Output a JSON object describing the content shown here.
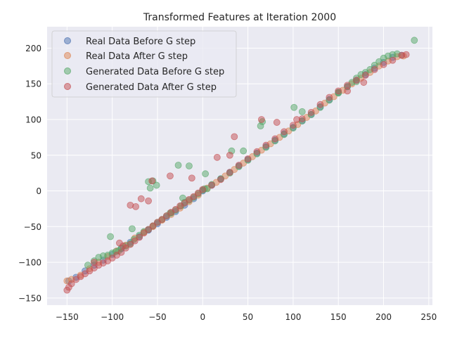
{
  "chart_data": {
    "type": "scatter",
    "title": "Transformed Features at Iteration 2000",
    "xlabel": "",
    "ylabel": "",
    "xlim": [
      -172,
      254
    ],
    "ylim": [
      -160,
      230
    ],
    "xticks": [
      -150,
      -100,
      -50,
      0,
      50,
      100,
      150,
      200,
      250
    ],
    "yticks": [
      -150,
      -100,
      -50,
      0,
      50,
      100,
      150,
      200
    ],
    "grid": true,
    "legend_position": "top-left",
    "series": [
      {
        "name": "Real Data Before G step",
        "color": "#4C72B0",
        "points": [
          [
            -148,
            -126
          ],
          [
            -140,
            -121
          ],
          [
            -130,
            -112
          ],
          [
            -120,
            -104
          ],
          [
            -110,
            -97
          ],
          [
            -100,
            -89
          ],
          [
            -90,
            -81
          ],
          [
            -80,
            -72
          ],
          [
            -70,
            -64
          ],
          [
            -60,
            -55
          ],
          [
            -50,
            -46
          ],
          [
            -40,
            -37
          ],
          [
            -30,
            -29
          ],
          [
            -20,
            -20
          ],
          [
            -10,
            -11
          ],
          [
            0,
            0
          ],
          [
            10,
            8
          ],
          [
            20,
            17
          ],
          [
            30,
            26
          ],
          [
            40,
            35
          ],
          [
            50,
            44
          ],
          [
            60,
            53
          ],
          [
            70,
            62
          ],
          [
            80,
            71
          ],
          [
            90,
            80
          ],
          [
            100,
            89
          ],
          [
            110,
            98
          ],
          [
            120,
            107
          ],
          [
            130,
            118
          ],
          [
            140,
            128
          ],
          [
            150,
            138
          ],
          [
            160,
            146
          ],
          [
            170,
            155
          ],
          [
            180,
            163
          ],
          [
            190,
            172
          ],
          [
            200,
            180
          ],
          [
            210,
            187
          ],
          [
            220,
            190
          ]
        ]
      },
      {
        "name": "Real Data After G step",
        "color": "#DD8452",
        "points": [
          [
            -150,
            -126
          ],
          [
            -145,
            -124
          ],
          [
            -135,
            -118
          ],
          [
            -125,
            -109
          ],
          [
            -115,
            -100
          ],
          [
            -105,
            -92
          ],
          [
            -95,
            -84
          ],
          [
            -85,
            -76
          ],
          [
            -75,
            -66
          ],
          [
            -65,
            -58
          ],
          [
            -55,
            -50
          ],
          [
            -45,
            -41
          ],
          [
            -35,
            -33
          ],
          [
            -25,
            -24
          ],
          [
            -15,
            -15
          ],
          [
            -5,
            -6
          ],
          [
            5,
            4
          ],
          [
            15,
            12
          ],
          [
            25,
            21
          ],
          [
            35,
            30
          ],
          [
            45,
            39
          ],
          [
            55,
            48
          ],
          [
            65,
            57
          ],
          [
            75,
            66
          ],
          [
            85,
            75
          ],
          [
            95,
            84
          ],
          [
            105,
            93
          ],
          [
            115,
            103
          ],
          [
            125,
            112
          ],
          [
            135,
            123
          ],
          [
            145,
            132
          ],
          [
            155,
            141
          ],
          [
            165,
            150
          ],
          [
            175,
            158
          ],
          [
            185,
            166
          ],
          [
            195,
            175
          ],
          [
            205,
            182
          ],
          [
            215,
            188
          ],
          [
            222,
            189
          ]
        ]
      },
      {
        "name": "Generated Data Before G step",
        "color": "#55A868",
        "points": [
          [
            -127,
            -104
          ],
          [
            -120,
            -98
          ],
          [
            -115,
            -93
          ],
          [
            -110,
            -91
          ],
          [
            -105,
            -90
          ],
          [
            -100,
            -87
          ],
          [
            -96,
            -85
          ],
          [
            -93,
            -84
          ],
          [
            -90,
            -80
          ],
          [
            -85,
            -77
          ],
          [
            -80,
            -74
          ],
          [
            -76,
            -68
          ],
          [
            -70,
            -62
          ],
          [
            -65,
            -57
          ],
          [
            -60,
            -54
          ],
          [
            -55,
            -49
          ],
          [
            -50,
            -44
          ],
          [
            -45,
            -40
          ],
          [
            -40,
            -35
          ],
          [
            -35,
            -31
          ],
          [
            -30,
            -27
          ],
          [
            -24,
            -21
          ],
          [
            -20,
            -16
          ],
          [
            -15,
            -13
          ],
          [
            -10,
            -9
          ],
          [
            -5,
            -4
          ],
          [
            0,
            1
          ],
          [
            5,
            3
          ],
          [
            10,
            9
          ],
          [
            20,
            17
          ],
          [
            30,
            25
          ],
          [
            40,
            34
          ],
          [
            50,
            43
          ],
          [
            60,
            52
          ],
          [
            70,
            61
          ],
          [
            80,
            70
          ],
          [
            90,
            79
          ],
          [
            100,
            88
          ],
          [
            110,
            98
          ],
          [
            120,
            107
          ],
          [
            130,
            117
          ],
          [
            140,
            127
          ],
          [
            150,
            137
          ],
          [
            160,
            146
          ],
          [
            165,
            152
          ],
          [
            170,
            158
          ],
          [
            175,
            163
          ],
          [
            180,
            166
          ],
          [
            185,
            170
          ],
          [
            190,
            176
          ],
          [
            195,
            181
          ],
          [
            200,
            186
          ],
          [
            205,
            189
          ],
          [
            210,
            191
          ],
          [
            215,
            192
          ],
          [
            234,
            211
          ],
          [
            -102,
            -64
          ],
          [
            -78,
            -53
          ],
          [
            -60,
            13
          ],
          [
            -58,
            4
          ],
          [
            -55,
            14
          ],
          [
            -51,
            8
          ],
          [
            -36,
            -31
          ],
          [
            -27,
            36
          ],
          [
            -22,
            -10
          ],
          [
            -15,
            35
          ],
          [
            2,
            3
          ],
          [
            3,
            24
          ],
          [
            32,
            56
          ],
          [
            45,
            56
          ],
          [
            64,
            91
          ],
          [
            66,
            97
          ],
          [
            101,
            117
          ],
          [
            110,
            111
          ],
          [
            150,
            138
          ],
          [
            170,
            153
          ]
        ]
      },
      {
        "name": "Generated Data After G step",
        "color": "#C44E52",
        "points": [
          [
            -150,
            -139
          ],
          [
            -148,
            -135
          ],
          [
            -145,
            -130
          ],
          [
            -140,
            -124
          ],
          [
            -135,
            -120
          ],
          [
            -130,
            -116
          ],
          [
            -125,
            -112
          ],
          [
            -120,
            -108
          ],
          [
            -115,
            -104
          ],
          [
            -110,
            -101
          ],
          [
            -105,
            -98
          ],
          [
            -100,
            -94
          ],
          [
            -95,
            -90
          ],
          [
            -90,
            -86
          ],
          [
            -85,
            -80
          ],
          [
            -80,
            -75
          ],
          [
            -75,
            -70
          ],
          [
            -70,
            -65
          ],
          [
            -65,
            -59
          ],
          [
            -60,
            -54
          ],
          [
            -55,
            -49
          ],
          [
            -50,
            -44
          ],
          [
            -45,
            -40
          ],
          [
            -40,
            -35
          ],
          [
            -35,
            -30
          ],
          [
            -30,
            -26
          ],
          [
            -25,
            -21
          ],
          [
            -20,
            -17
          ],
          [
            -15,
            -12
          ],
          [
            -10,
            -8
          ],
          [
            -5,
            -3
          ],
          [
            0,
            2
          ],
          [
            10,
            8
          ],
          [
            20,
            16
          ],
          [
            30,
            26
          ],
          [
            40,
            36
          ],
          [
            50,
            45
          ],
          [
            60,
            55
          ],
          [
            70,
            64
          ],
          [
            80,
            73
          ],
          [
            90,
            83
          ],
          [
            100,
            92
          ],
          [
            110,
            101
          ],
          [
            120,
            110
          ],
          [
            130,
            121
          ],
          [
            140,
            131
          ],
          [
            150,
            140
          ],
          [
            160,
            148
          ],
          [
            170,
            155
          ],
          [
            180,
            162
          ],
          [
            190,
            170
          ],
          [
            200,
            177
          ],
          [
            210,
            183
          ],
          [
            220,
            190
          ],
          [
            225,
            191
          ],
          [
            -120,
            -100
          ],
          [
            -92,
            -73
          ],
          [
            -88,
            -77
          ],
          [
            -80,
            -20
          ],
          [
            -74,
            -22
          ],
          [
            -68,
            -11
          ],
          [
            -60,
            -14
          ],
          [
            -56,
            14
          ],
          [
            -36,
            21
          ],
          [
            -12,
            18
          ],
          [
            16,
            47
          ],
          [
            30,
            50
          ],
          [
            35,
            76
          ],
          [
            65,
            100
          ],
          [
            82,
            96
          ],
          [
            104,
            100
          ],
          [
            160,
            140
          ],
          [
            178,
            152
          ]
        ]
      }
    ]
  },
  "legend_items": [
    {
      "label": "Real Data Before G step"
    },
    {
      "label": "Real Data After G step"
    },
    {
      "label": "Generated Data Before G step"
    },
    {
      "label": "Generated Data After G step"
    }
  ]
}
